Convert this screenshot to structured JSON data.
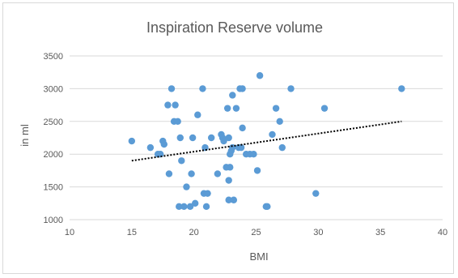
{
  "chart_data": {
    "type": "scatter",
    "title": "Inspiration Reserve volume",
    "xlabel": "BMI",
    "ylabel": "in ml",
    "xlim": [
      10,
      40
    ],
    "ylim": [
      1000,
      3500
    ],
    "x_ticks": [
      10,
      15,
      20,
      25,
      30,
      35,
      40
    ],
    "y_ticks": [
      1000,
      1500,
      2000,
      2500,
      3000,
      3500
    ],
    "grid": "horizontal",
    "legend": "none",
    "marker_color": "#5b9bd5",
    "trendline": {
      "type": "linear",
      "style": "dotted",
      "color": "#000000",
      "x": [
        15,
        36.7
      ],
      "y": [
        1900,
        2500
      ]
    },
    "series": [
      {
        "points": [
          [
            15.0,
            2200
          ],
          [
            16.5,
            2100
          ],
          [
            17.1,
            2000
          ],
          [
            17.3,
            2000
          ],
          [
            17.5,
            2200
          ],
          [
            17.6,
            2150
          ],
          [
            17.9,
            2750
          ],
          [
            18.0,
            1700
          ],
          [
            18.2,
            3000
          ],
          [
            18.4,
            2500
          ],
          [
            18.5,
            2750
          ],
          [
            18.7,
            2500
          ],
          [
            18.8,
            1200
          ],
          [
            18.9,
            2250
          ],
          [
            19.0,
            1900
          ],
          [
            19.2,
            1200
          ],
          [
            19.4,
            1500
          ],
          [
            19.7,
            1200
          ],
          [
            19.8,
            1700
          ],
          [
            19.9,
            2250
          ],
          [
            20.1,
            1250
          ],
          [
            20.3,
            2600
          ],
          [
            20.7,
            3000
          ],
          [
            20.8,
            1400
          ],
          [
            20.9,
            2100
          ],
          [
            21.0,
            1200
          ],
          [
            21.1,
            1400
          ],
          [
            21.4,
            2250
          ],
          [
            21.9,
            1700
          ],
          [
            22.2,
            2300
          ],
          [
            22.3,
            2250
          ],
          [
            22.4,
            2200
          ],
          [
            22.6,
            1800
          ],
          [
            22.7,
            2700
          ],
          [
            22.8,
            2250
          ],
          [
            22.8,
            1600
          ],
          [
            22.8,
            1300
          ],
          [
            22.9,
            2000
          ],
          [
            22.9,
            1800
          ],
          [
            23.0,
            2050
          ],
          [
            23.1,
            2900
          ],
          [
            23.1,
            2100
          ],
          [
            23.2,
            1300
          ],
          [
            23.4,
            2700
          ],
          [
            23.6,
            2100
          ],
          [
            23.7,
            3000
          ],
          [
            23.8,
            2100
          ],
          [
            23.9,
            3000
          ],
          [
            23.9,
            2400
          ],
          [
            24.2,
            2000
          ],
          [
            24.5,
            2000
          ],
          [
            24.8,
            2000
          ],
          [
            25.1,
            1750
          ],
          [
            25.3,
            3200
          ],
          [
            25.8,
            1200
          ],
          [
            25.9,
            1200
          ],
          [
            26.3,
            2300
          ],
          [
            26.6,
            2700
          ],
          [
            26.9,
            2500
          ],
          [
            27.1,
            2100
          ],
          [
            27.8,
            3000
          ],
          [
            29.8,
            1400
          ],
          [
            30.5,
            2700
          ],
          [
            36.7,
            3000
          ]
        ]
      }
    ]
  }
}
